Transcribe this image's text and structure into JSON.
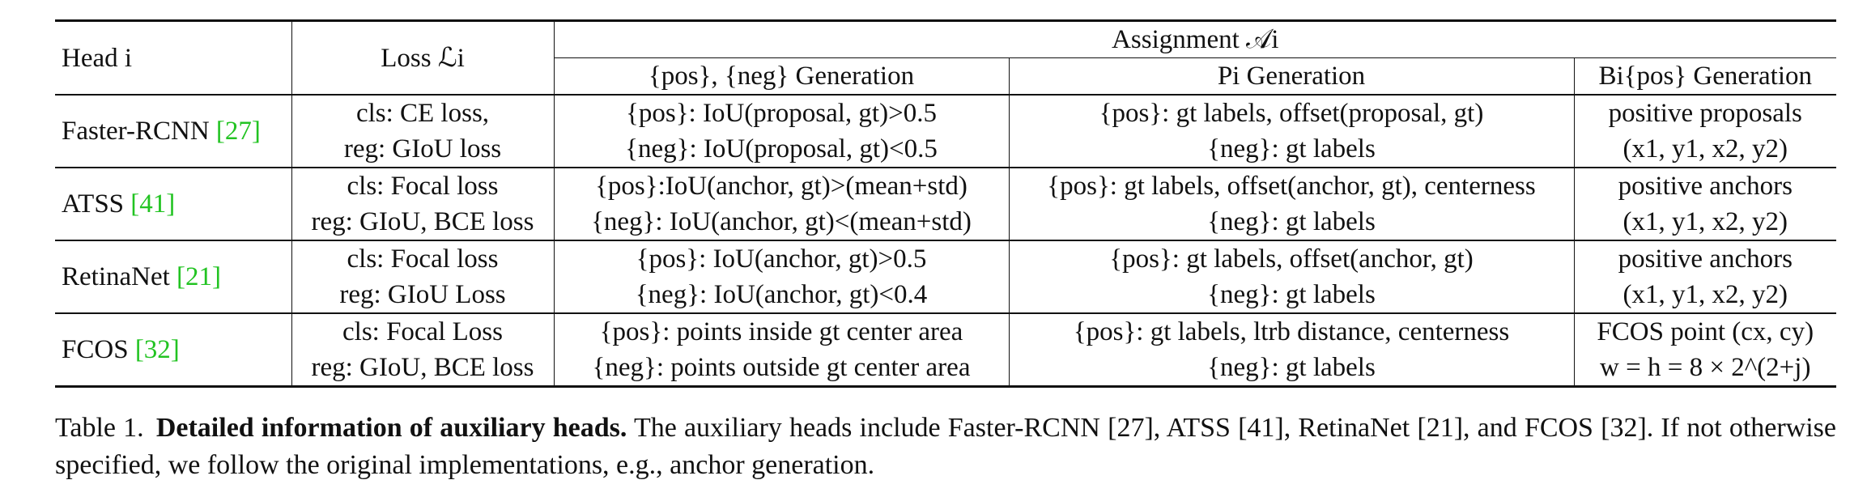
{
  "table": {
    "headers": {
      "head": "Head i",
      "loss": "Loss ℒi",
      "assignment": "Assignment 𝒜i",
      "posneg_gen": "{pos}, {neg} Generation",
      "p_gen": "Pi Generation",
      "b_gen": "Bi{pos} Generation"
    },
    "rows": [
      {
        "head": "Faster-RCNN",
        "cite": "[27]",
        "loss": [
          "cls: CE loss,",
          "reg: GIoU loss"
        ],
        "posneg": [
          "{pos}: IoU(proposal, gt)>0.5",
          "{neg}: IoU(proposal, gt)<0.5"
        ],
        "p": [
          "{pos}: gt labels, offset(proposal, gt)",
          "{neg}: gt labels"
        ],
        "b": [
          "positive proposals",
          "(x1, y1, x2, y2)"
        ]
      },
      {
        "head": "ATSS",
        "cite": "[41]",
        "loss": [
          "cls: Focal loss",
          "reg: GIoU, BCE loss"
        ],
        "posneg": [
          "{pos}:IoU(anchor, gt)>(mean+std)",
          "{neg}: IoU(anchor, gt)<(mean+std)"
        ],
        "p": [
          "{pos}: gt labels, offset(anchor, gt), centerness",
          "{neg}: gt labels"
        ],
        "b": [
          "positive anchors",
          "(x1, y1, x2, y2)"
        ]
      },
      {
        "head": "RetinaNet",
        "cite": "[21]",
        "loss": [
          "cls: Focal loss",
          "reg: GIoU Loss"
        ],
        "posneg": [
          "{pos}: IoU(anchor, gt)>0.5",
          "{neg}: IoU(anchor, gt)<0.4"
        ],
        "p": [
          "{pos}: gt labels, offset(anchor, gt)",
          "{neg}: gt labels"
        ],
        "b": [
          "positive anchors",
          "(x1, y1, x2, y2)"
        ]
      },
      {
        "head": "FCOS",
        "cite": "[32]",
        "loss": [
          "cls: Focal Loss",
          "reg: GIoU, BCE loss"
        ],
        "posneg": [
          "{pos}: points inside gt center area",
          "{neg}: points outside gt center area"
        ],
        "p": [
          "{pos}: gt labels, ltrb distance, centerness",
          "{neg}: gt labels"
        ],
        "b": [
          "FCOS point (cx, cy)",
          "w = h = 8 × 2^(2+j)"
        ]
      }
    ]
  },
  "caption": {
    "label": "Table 1.",
    "title": "Detailed information of auxiliary heads.",
    "body": "The auxiliary heads include Faster-RCNN [27], ATSS [41], RetinaNet [21], and FCOS [32]. If not otherwise specified, we follow the original implementations, e.g., anchor generation."
  },
  "colors": {
    "text": "#111111",
    "citation": "#22c322",
    "background": "#ffffff"
  }
}
